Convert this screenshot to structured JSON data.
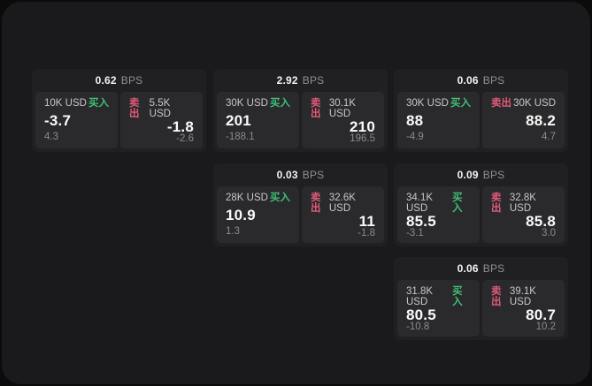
{
  "labels": {
    "buy": "买入",
    "sell": "卖出",
    "bps_unit": "BPS"
  },
  "colors": {
    "outer_bg": "#0b0b0c",
    "panel_bg": "#1a1a1d",
    "card_bg": "#202022",
    "tile_bg": "#2a2a2c",
    "buy_green": "#3fbf77",
    "sell_red": "#e05a78",
    "price_white": "#fafafa",
    "muted_gray": "#8b8b8f"
  },
  "cards": [
    {
      "bps": "0.62",
      "buy": {
        "amount": "10K USD",
        "price": "-3.7",
        "delta": "4.3"
      },
      "sell": {
        "amount": "5.5K USD",
        "price": "-1.8",
        "delta": "-2.6"
      }
    },
    {
      "bps": "2.92",
      "buy": {
        "amount": "30K USD",
        "price": "201",
        "delta": "-188.1"
      },
      "sell": {
        "amount": "30.1K USD",
        "price": "210",
        "delta": "196.5"
      }
    },
    {
      "bps": "0.06",
      "buy": {
        "amount": "30K USD",
        "price": "88",
        "delta": "-4.9"
      },
      "sell": {
        "amount": "30K USD",
        "price": "88.2",
        "delta": "4.7"
      }
    },
    {
      "bps": "0.03",
      "buy": {
        "amount": "28K USD",
        "price": "10.9",
        "delta": "1.3"
      },
      "sell": {
        "amount": "32.6K USD",
        "price": "11",
        "delta": "-1.8"
      }
    },
    {
      "bps": "0.09",
      "buy": {
        "amount": "34.1K USD",
        "price": "85.5",
        "delta": "-3.1"
      },
      "sell": {
        "amount": "32.8K USD",
        "price": "85.8",
        "delta": "3.0"
      }
    },
    {
      "bps": "0.06",
      "buy": {
        "amount": "31.8K USD",
        "price": "80.5",
        "delta": "-10.8"
      },
      "sell": {
        "amount": "39.1K USD",
        "price": "80.7",
        "delta": "10.2"
      }
    }
  ]
}
